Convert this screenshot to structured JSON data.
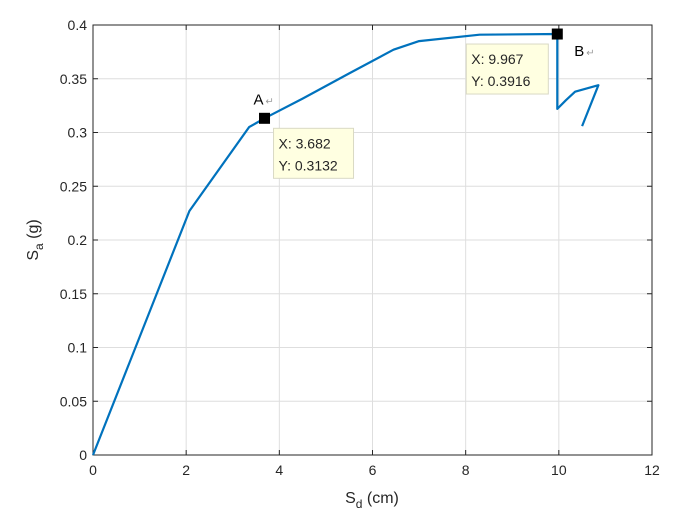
{
  "chart_data": {
    "type": "line",
    "xlabel": {
      "base": "S",
      "sub": "d",
      "rest": " (cm)"
    },
    "ylabel": {
      "base": "S",
      "sub": "a",
      "rest": " (g)"
    },
    "xlim": [
      0,
      12
    ],
    "ylim": [
      0,
      0.4
    ],
    "xticks": [
      0,
      2,
      4,
      6,
      8,
      10,
      12
    ],
    "yticks": [
      0,
      0.05,
      0.1,
      0.15,
      0.2,
      0.25,
      0.3,
      0.35,
      0.4
    ],
    "xtick_labels": [
      "0",
      "2",
      "4",
      "6",
      "8",
      "10",
      "12"
    ],
    "ytick_labels": [
      "0",
      "0.05",
      "0.1",
      "0.15",
      "0.2",
      "0.25",
      "0.3",
      "0.35",
      "0.4"
    ],
    "grid": true,
    "line_color": "#0072BD",
    "series": [
      {
        "x": [
          0,
          2.07,
          3.35,
          3.682,
          4.5,
          5.5,
          6.45,
          7.0,
          8.3,
          9.967,
          9.967,
          10.15,
          10.35,
          10.85,
          10.5
        ],
        "y": [
          0,
          0.227,
          0.305,
          0.3132,
          0.3315,
          0.355,
          0.377,
          0.385,
          0.391,
          0.3916,
          0.322,
          0.33,
          0.338,
          0.344,
          0.306
        ]
      }
    ],
    "annotations": [
      {
        "label": "A",
        "x": 3.682,
        "y": 0.3132,
        "tip_x": "X: 3.682",
        "tip_y": "Y: 0.3132"
      },
      {
        "label": "B",
        "x": 9.967,
        "y": 0.3916,
        "tip_x": "X: 9.967",
        "tip_y": "Y: 0.3916"
      }
    ]
  }
}
